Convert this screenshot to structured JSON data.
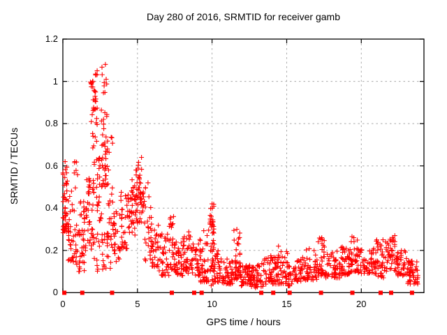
{
  "title": "Day 280 of 2016, SRMTID for receiver gamb",
  "x_axis": {
    "label": "GPS time / hours",
    "tick_labels": [
      "0",
      "5",
      "10",
      "15",
      "20"
    ],
    "tick_values": [
      0,
      5,
      10,
      15,
      20
    ]
  },
  "y_axis": {
    "label": "SRMTID / TECUs",
    "tick_labels": [
      "0",
      "0.2",
      "0.4",
      "0.6",
      "0.8",
      "1",
      "1.2"
    ],
    "tick_values": [
      0,
      0.2,
      0.4,
      0.6,
      0.8,
      1.0,
      1.2
    ]
  },
  "colors": {
    "marker": "#ff0000",
    "grid": "#a8a8a8",
    "border": "#000000",
    "text": "#000000",
    "background": "#ffffff"
  },
  "chart_data": {
    "type": "scatter",
    "title": "Day 280 of 2016, SRMTID for receiver gamb",
    "xlabel": "GPS time / hours",
    "ylabel": "SRMTID / TECUs",
    "xlim": [
      0,
      24.2
    ],
    "ylim": [
      0,
      1.2
    ],
    "grid": "dashed",
    "legend": "none",
    "marker": "plus",
    "y_max_observed": 1.08,
    "y_max_location_hours": 2.85,
    "cluster_segments": [
      {
        "x0": 0.0,
        "x1": 0.3,
        "n": 45,
        "ylo": 0.28,
        "yhi": 0.63,
        "bias": 1.6
      },
      {
        "x0": 0.3,
        "x1": 0.7,
        "n": 28,
        "ylo": 0.15,
        "yhi": 0.48,
        "bias": 1.5
      },
      {
        "x0": 0.7,
        "x1": 1.0,
        "n": 22,
        "ylo": 0.13,
        "yhi": 0.63,
        "bias": 1.8
      },
      {
        "x0": 1.0,
        "x1": 1.5,
        "n": 38,
        "ylo": 0.1,
        "yhi": 0.44,
        "bias": 1.4
      },
      {
        "x0": 1.5,
        "x1": 2.1,
        "n": 45,
        "ylo": 0.17,
        "yhi": 0.55,
        "bias": 1.3
      },
      {
        "x0": 1.85,
        "x1": 2.3,
        "n": 35,
        "ylo": 0.55,
        "yhi": 1.04,
        "bias": 0.45
      },
      {
        "x0": 2.25,
        "x1": 2.6,
        "n": 28,
        "ylo": 0.33,
        "yhi": 0.88,
        "bias": 1.1
      },
      {
        "x0": 2.6,
        "x1": 2.95,
        "n": 40,
        "ylo": 0.5,
        "yhi": 1.08,
        "bias": 1.5
      },
      {
        "x0": 1.9,
        "x1": 3.3,
        "n": 26,
        "ylo": 0.09,
        "yhi": 0.3,
        "bias": 1.2
      },
      {
        "x0": 2.95,
        "x1": 3.35,
        "n": 30,
        "ylo": 0.17,
        "yhi": 0.75,
        "bias": 1.9
      },
      {
        "x0": 3.3,
        "x1": 3.85,
        "n": 30,
        "ylo": 0.14,
        "yhi": 0.42,
        "bias": 1.4
      },
      {
        "x0": 3.85,
        "x1": 4.35,
        "n": 30,
        "ylo": 0.2,
        "yhi": 0.48,
        "bias": 1.3
      },
      {
        "x0": 4.35,
        "x1": 4.85,
        "n": 38,
        "ylo": 0.27,
        "yhi": 0.55,
        "bias": 1.2
      },
      {
        "x0": 4.85,
        "x1": 5.15,
        "n": 30,
        "ylo": 0.33,
        "yhi": 0.62,
        "bias": 1.0
      },
      {
        "x0": 5.15,
        "x1": 5.45,
        "n": 24,
        "ylo": 0.33,
        "yhi": 0.64,
        "bias": 1.2
      },
      {
        "x0": 5.45,
        "x1": 5.95,
        "n": 30,
        "ylo": 0.15,
        "yhi": 0.52,
        "bias": 1.5
      },
      {
        "x0": 5.95,
        "x1": 6.45,
        "n": 30,
        "ylo": 0.12,
        "yhi": 0.33,
        "bias": 1.4
      },
      {
        "x0": 6.45,
        "x1": 7.1,
        "n": 36,
        "ylo": 0.08,
        "yhi": 0.28,
        "bias": 1.5
      },
      {
        "x0": 7.1,
        "x1": 7.6,
        "n": 36,
        "ylo": 0.1,
        "yhi": 0.36,
        "bias": 1.6
      },
      {
        "x0": 7.6,
        "x1": 8.1,
        "n": 34,
        "ylo": 0.08,
        "yhi": 0.26,
        "bias": 1.5
      },
      {
        "x0": 8.1,
        "x1": 8.55,
        "n": 30,
        "ylo": 0.09,
        "yhi": 0.29,
        "bias": 1.5
      },
      {
        "x0": 8.55,
        "x1": 9.2,
        "n": 40,
        "ylo": 0.08,
        "yhi": 0.26,
        "bias": 1.4
      },
      {
        "x0": 9.2,
        "x1": 9.8,
        "n": 40,
        "ylo": 0.05,
        "yhi": 0.3,
        "bias": 1.7
      },
      {
        "x0": 9.85,
        "x1": 10.15,
        "n": 45,
        "ylo": 0.03,
        "yhi": 0.42,
        "bias": 1.0
      },
      {
        "x0": 10.15,
        "x1": 10.65,
        "n": 30,
        "ylo": 0.05,
        "yhi": 0.2,
        "bias": 1.6
      },
      {
        "x0": 10.65,
        "x1": 11.4,
        "n": 45,
        "ylo": 0.04,
        "yhi": 0.16,
        "bias": 1.4
      },
      {
        "x0": 11.4,
        "x1": 11.9,
        "n": 40,
        "ylo": 0.06,
        "yhi": 0.3,
        "bias": 1.7
      },
      {
        "x0": 11.9,
        "x1": 12.6,
        "n": 48,
        "ylo": 0.03,
        "yhi": 0.13,
        "bias": 1.3
      },
      {
        "x0": 12.6,
        "x1": 13.4,
        "n": 52,
        "ylo": 0.02,
        "yhi": 0.14,
        "bias": 1.3
      },
      {
        "x0": 13.4,
        "x1": 14.3,
        "n": 50,
        "ylo": 0.04,
        "yhi": 0.18,
        "bias": 1.5
      },
      {
        "x0": 14.3,
        "x1": 15.1,
        "n": 45,
        "ylo": 0.04,
        "yhi": 0.2,
        "bias": 1.6
      },
      {
        "x0": 15.1,
        "x1": 15.7,
        "n": 30,
        "ylo": 0.03,
        "yhi": 0.13,
        "bias": 1.4
      },
      {
        "x0": 15.7,
        "x1": 16.3,
        "n": 30,
        "ylo": 0.05,
        "yhi": 0.17,
        "bias": 1.5
      },
      {
        "x0": 16.3,
        "x1": 17.1,
        "n": 45,
        "ylo": 0.06,
        "yhi": 0.21,
        "bias": 1.5
      },
      {
        "x0": 17.1,
        "x1": 17.6,
        "n": 35,
        "ylo": 0.08,
        "yhi": 0.27,
        "bias": 1.6
      },
      {
        "x0": 17.6,
        "x1": 18.6,
        "n": 50,
        "ylo": 0.07,
        "yhi": 0.2,
        "bias": 1.4
      },
      {
        "x0": 18.6,
        "x1": 19.3,
        "n": 45,
        "ylo": 0.08,
        "yhi": 0.22,
        "bias": 1.4
      },
      {
        "x0": 19.3,
        "x1": 19.8,
        "n": 35,
        "ylo": 0.1,
        "yhi": 0.27,
        "bias": 1.5
      },
      {
        "x0": 19.8,
        "x1": 21.0,
        "n": 60,
        "ylo": 0.09,
        "yhi": 0.21,
        "bias": 1.3
      },
      {
        "x0": 21.0,
        "x1": 21.7,
        "n": 40,
        "ylo": 0.07,
        "yhi": 0.25,
        "bias": 1.6
      },
      {
        "x0": 21.7,
        "x1": 22.4,
        "n": 40,
        "ylo": 0.1,
        "yhi": 0.27,
        "bias": 1.5
      },
      {
        "x0": 22.4,
        "x1": 23.1,
        "n": 40,
        "ylo": 0.08,
        "yhi": 0.2,
        "bias": 1.4
      },
      {
        "x0": 23.1,
        "x1": 23.8,
        "n": 48,
        "ylo": 0.04,
        "yhi": 0.15,
        "bias": 1.2
      }
    ],
    "notable_points": [
      [
        0.02,
        0.3
      ],
      [
        0.15,
        0.62
      ],
      [
        0.8,
        0.62
      ],
      [
        2.2,
        1.03
      ],
      [
        2.3,
        1.05
      ],
      [
        2.85,
        1.08
      ],
      [
        2.9,
        1.01
      ],
      [
        5.27,
        0.64
      ],
      [
        7.42,
        0.36
      ],
      [
        10.0,
        0.42
      ],
      [
        10.02,
        0.4
      ],
      [
        11.66,
        0.3
      ],
      [
        14.45,
        0.22
      ],
      [
        17.35,
        0.26
      ],
      [
        19.5,
        0.26
      ],
      [
        21.45,
        0.25
      ],
      [
        22.25,
        0.27
      ]
    ],
    "baseline_square_hours": [
      0.1,
      1.3,
      3.3,
      7.3,
      8.8,
      9.3,
      13.3,
      14.1,
      15.2,
      17.3,
      19.4,
      21.3,
      22.0,
      23.4
    ]
  }
}
